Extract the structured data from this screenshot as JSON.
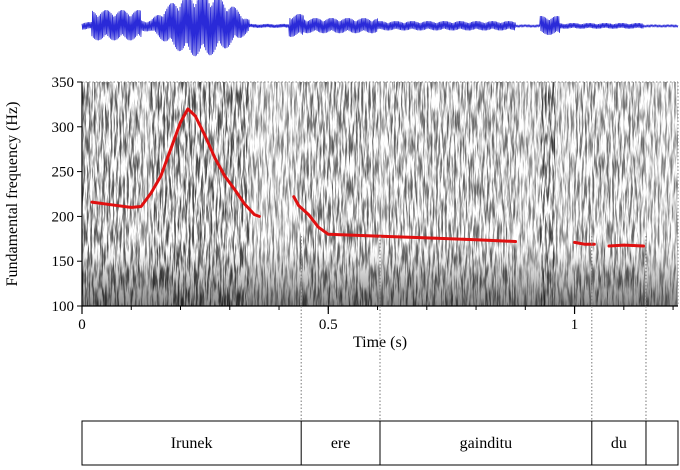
{
  "chart_data": {
    "type": "line",
    "xlabel": "Time (s)",
    "ylabel": "Fundamental frequency (Hz)",
    "xlim": [
      0,
      1.21
    ],
    "ylim": [
      100,
      350
    ],
    "x_ticks": [
      {
        "value": 0,
        "label": "0"
      },
      {
        "value": 0.5,
        "label": "0.5"
      },
      {
        "value": 1,
        "label": "1"
      }
    ],
    "y_ticks": [
      {
        "value": 100,
        "label": "100"
      },
      {
        "value": 150,
        "label": "150"
      },
      {
        "value": 200,
        "label": "200"
      },
      {
        "value": 250,
        "label": "250"
      },
      {
        "value": 300,
        "label": "300"
      },
      {
        "value": 350,
        "label": "350"
      }
    ],
    "series": [
      {
        "color": "#e01010",
        "segments": [
          [
            [
              0.02,
              216
            ],
            [
              0.06,
              213
            ],
            [
              0.1,
              210
            ],
            [
              0.12,
              211
            ],
            [
              0.14,
              226
            ],
            [
              0.16,
              245
            ],
            [
              0.18,
              275
            ],
            [
              0.2,
              305
            ],
            [
              0.215,
              320
            ],
            [
              0.23,
              312
            ],
            [
              0.25,
              290
            ],
            [
              0.27,
              265
            ],
            [
              0.29,
              245
            ],
            [
              0.31,
              230
            ],
            [
              0.33,
              214
            ],
            [
              0.35,
              202
            ],
            [
              0.36,
              200
            ]
          ],
          [
            [
              0.43,
              222
            ],
            [
              0.44,
              212
            ],
            [
              0.46,
              202
            ],
            [
              0.48,
              188
            ],
            [
              0.5,
              180
            ],
            [
              0.6,
              178
            ],
            [
              0.7,
              176
            ],
            [
              0.8,
              174
            ],
            [
              0.88,
              172
            ]
          ],
          [
            [
              1.0,
              171
            ],
            [
              1.02,
              169
            ],
            [
              1.04,
              169
            ]
          ],
          [
            [
              1.07,
              167
            ],
            [
              1.1,
              168
            ],
            [
              1.14,
              167
            ]
          ]
        ]
      }
    ],
    "waveform_color": "#2a2ad8",
    "spectrogram": true,
    "intervals": [
      {
        "start": 0,
        "end": 0.445,
        "label": "Irunek"
      },
      {
        "start": 0.445,
        "end": 0.605,
        "label": "ere"
      },
      {
        "start": 0.605,
        "end": 1.035,
        "label": "gainditu"
      },
      {
        "start": 1.035,
        "end": 1.145,
        "label": "du"
      },
      {
        "start": 1.145,
        "end": 1.21,
        "label": ""
      }
    ]
  }
}
